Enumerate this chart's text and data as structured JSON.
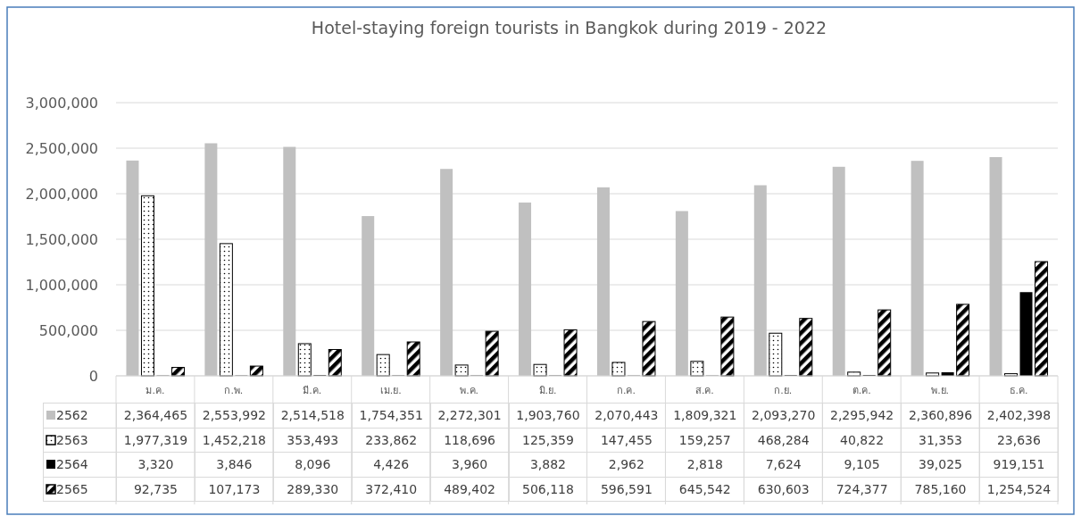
{
  "chart_data": {
    "type": "bar",
    "title": "Hotel-staying foreign tourists in Bangkok during 2019 - 2022",
    "categories": [
      "ม.ค.",
      "ก.พ.",
      "มี.ค.",
      "เม.ย.",
      "พ.ค.",
      "มิ.ย.",
      "ก.ค.",
      "ส.ค.",
      "ก.ย.",
      "ต.ค.",
      "พ.ย.",
      "ธ.ค."
    ],
    "series": [
      {
        "name": "2562",
        "color": "#c0c0c0",
        "values": [
          2364465,
          2553992,
          2514518,
          1754351,
          2272301,
          1903760,
          2070443,
          1809321,
          2093270,
          2295942,
          2360896,
          2402398
        ],
        "value_labels": [
          "2,364,465",
          "2,553,992",
          "2,514,518",
          "1,754,351",
          "2,272,301",
          "1,903,760",
          "2,070,443",
          "1,809,321",
          "2,093,270",
          "2,295,942",
          "2,360,896",
          "2,402,398"
        ]
      },
      {
        "name": "2563",
        "color": "#000000",
        "values": [
          1977319,
          1452218,
          353493,
          233862,
          118696,
          125359,
          147455,
          159257,
          468284,
          40822,
          31353,
          23636
        ],
        "value_labels": [
          "1,977,319",
          "1,452,218",
          "353,493",
          "233,862",
          "118,696",
          "125,359",
          "147,455",
          "159,257",
          "468,284",
          "40,822",
          "31,353",
          "23,636"
        ]
      },
      {
        "name": "2564",
        "color": "#000000",
        "values": [
          3320,
          3846,
          8096,
          4426,
          3960,
          3882,
          2962,
          2818,
          7624,
          9105,
          39025,
          919151
        ],
        "value_labels": [
          "3,320",
          "3,846",
          "8,096",
          "4,426",
          "3,960",
          "3,882",
          "2,962",
          "2,818",
          "7,624",
          "9,105",
          "39,025",
          "919,151"
        ]
      },
      {
        "name": "2565",
        "color": "#000000",
        "values": [
          92735,
          107173,
          289330,
          372410,
          489402,
          506118,
          596591,
          645542,
          630603,
          724377,
          785160,
          1254524
        ],
        "value_labels": [
          "92,735",
          "107,173",
          "289,330",
          "372,410",
          "489,402",
          "506,118",
          "596,591",
          "645,542",
          "630,603",
          "724,377",
          "785,160",
          "1,254,524"
        ]
      }
    ],
    "ylim": [
      0,
      3000000
    ],
    "yticks": [
      {
        "value": 0,
        "label": "0"
      },
      {
        "value": 500000,
        "label": "500,000"
      },
      {
        "value": 1000000,
        "label": "1,000,000"
      },
      {
        "value": 1500000,
        "label": "1,500,000"
      },
      {
        "value": 2000000,
        "label": "2,000,000"
      },
      {
        "value": 2500000,
        "label": "2,500,000"
      },
      {
        "value": 3000000,
        "label": "3,000,000"
      }
    ],
    "grid": "y",
    "legend": "bottom"
  }
}
